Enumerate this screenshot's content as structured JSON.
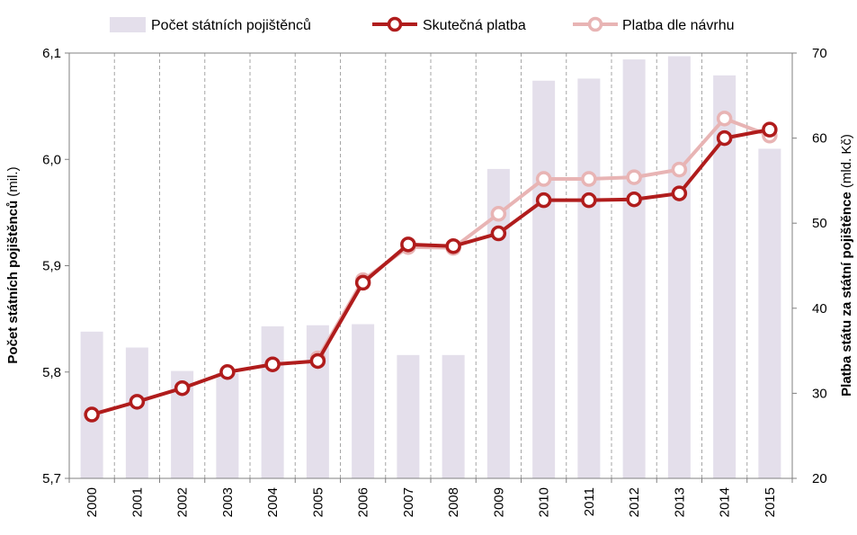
{
  "chart_data": {
    "type": "bar+line",
    "categories": [
      "2000",
      "2001",
      "2002",
      "2003",
      "2004",
      "2005",
      "2006",
      "2007",
      "2008",
      "2009",
      "2010",
      "2011",
      "2012",
      "2013",
      "2014",
      "2015"
    ],
    "bars": {
      "name": "Počet státních pojištěnců",
      "axis": "left",
      "values": [
        5.838,
        5.823,
        5.801,
        5.799,
        5.843,
        5.844,
        5.845,
        5.816,
        5.816,
        5.991,
        6.074,
        6.076,
        6.094,
        6.097,
        6.079,
        6.01
      ],
      "color": "#e4dfeb"
    },
    "series": [
      {
        "name": "Skutečná platba",
        "axis": "right",
        "values": [
          27.5,
          29.0,
          30.6,
          32.5,
          33.4,
          33.8,
          43.0,
          47.5,
          47.3,
          48.8,
          52.7,
          52.7,
          52.8,
          53.5,
          60.0,
          61.0
        ],
        "color": "#b01c1c"
      },
      {
        "name": "Platba dle návrhu",
        "axis": "right",
        "values": [
          null,
          null,
          null,
          null,
          null,
          34.1,
          43.3,
          47.2,
          47.1,
          51.1,
          55.2,
          55.2,
          55.4,
          56.3,
          62.3,
          60.3
        ],
        "color": "#e8b4b4"
      }
    ],
    "y_left": {
      "label_bold": "Počet státních pojištěnců",
      "label_rest": " (mil.)",
      "ylim": [
        5.7,
        6.1
      ],
      "ticks": [
        "5,7",
        "5,8",
        "5,9",
        "6,0",
        "6,1"
      ]
    },
    "y_right": {
      "label_bold": "Platba státu za státní pojištěnce",
      "label_rest": " (mld. Kč)",
      "ylim": [
        20,
        70
      ],
      "ticks": [
        "20",
        "30",
        "40",
        "50",
        "60",
        "70"
      ]
    },
    "grid": "vertical-dashed",
    "legend_position": "top"
  }
}
